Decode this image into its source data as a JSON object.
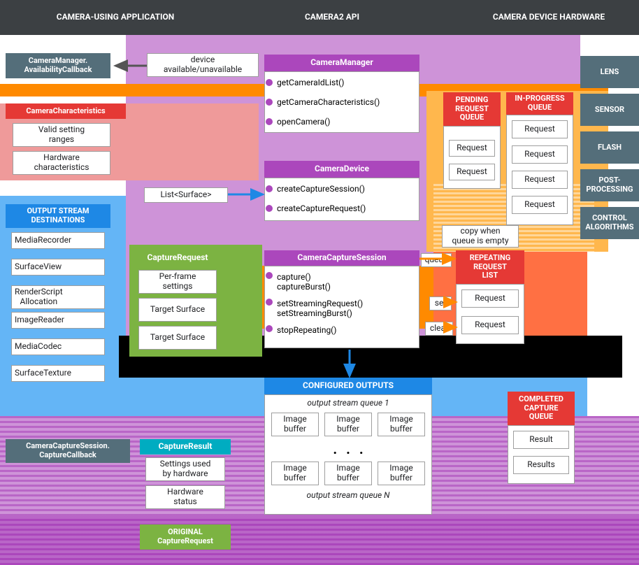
{
  "colors": {
    "top_bar": "#3c4043",
    "purple": "#ab47bc",
    "purple_light": "#ce93d8",
    "orange": "#ff8a00",
    "orange_light": "#ffb74d",
    "red": "#e53935",
    "red_light": "#ef5350",
    "blue": "#1e88e5",
    "blue_light": "#64b5f6",
    "green": "#7cb342",
    "cyan": "#00acc1",
    "gray_dark": "#546e7a",
    "gray_mid": "#5f6368",
    "pink_light": "#ef9a9a",
    "coral": "#ff7043",
    "white": "#ffffff",
    "border": "#9e9e9e",
    "black": "#000000"
  },
  "top": {
    "col1": "CAMERA-USING APPLICATION",
    "col2": "CAMERA2 API",
    "col3": "CAMERA DEVICE HARDWARE"
  },
  "hardware": {
    "lens": "LENS",
    "sensor": "SENSOR",
    "flash": "FLASH",
    "post": "POST-\nPROCESSING",
    "control": "CONTROL\nALGORITHMS"
  },
  "app": {
    "availability_cb": "CameraManager.\nAvailabilityCallback",
    "characteristics": "CameraCharacteristics",
    "char_items": [
      "Valid setting\nranges",
      "Hardware\ncharacteristics"
    ],
    "list_surface": "List<Surface>",
    "output_dest_title": "OUTPUT STREAM\nDESTINATIONS",
    "output_dest_items": [
      "MediaRecorder",
      "SurfaceView",
      "RenderScript\nAllocation",
      "ImageReader",
      "MediaCodec",
      "SurfaceTexture"
    ],
    "capture_cb": "CameraCaptureSession.\nCaptureCallback"
  },
  "api": {
    "camera_manager": "CameraManager",
    "cm_methods": [
      "getCameraIdList()",
      "getCameraCharacteristics()",
      "openCamera()"
    ],
    "camera_device": "CameraDevice",
    "cd_methods": [
      "createCaptureSession()",
      "createCaptureRequest()"
    ],
    "capture_request": "CaptureRequest",
    "cr_items": [
      "Per-frame\nsettings",
      "Target Surface",
      "Target Surface"
    ],
    "capture_session": "CameraCaptureSession",
    "cs_methods": [
      "capture()\ncaptureBurst()",
      "setStreamingRequest()\nsetStreamingBurst()",
      "stopRepeating()"
    ],
    "capture_result": "CaptureResult",
    "res_items": [
      "Settings used\nby hardware",
      "Hardware\nstatus"
    ],
    "original_req": "ORIGINAL\nCaptureRequest"
  },
  "queues": {
    "queue_label": "queue",
    "set_label": "set",
    "clear_label": "clear",
    "copy_label": "copy when\nqueue is empty",
    "pending": "PENDING\nREQUEST\nQUEUE",
    "pending_items": [
      "Request",
      "Request"
    ],
    "inprogress": "IN-PROGRESS\nQUEUE",
    "inprogress_items": [
      "Request",
      "Request",
      "Request",
      "Request"
    ],
    "repeating": "REPEATING\nREQUEST\nLIST",
    "repeating_items": [
      "Request",
      "Request"
    ],
    "completed": "COMPLETED\nCAPTURE\nQUEUE",
    "completed_items": [
      "Result",
      "Results"
    ],
    "device_label": "device\navailable/unavailable"
  },
  "outputs": {
    "title": "CONFIGURED OUTPUTS",
    "stream1": "output stream queue 1",
    "streamN": "output stream queue N",
    "buffer": "Image\nbuffer"
  }
}
